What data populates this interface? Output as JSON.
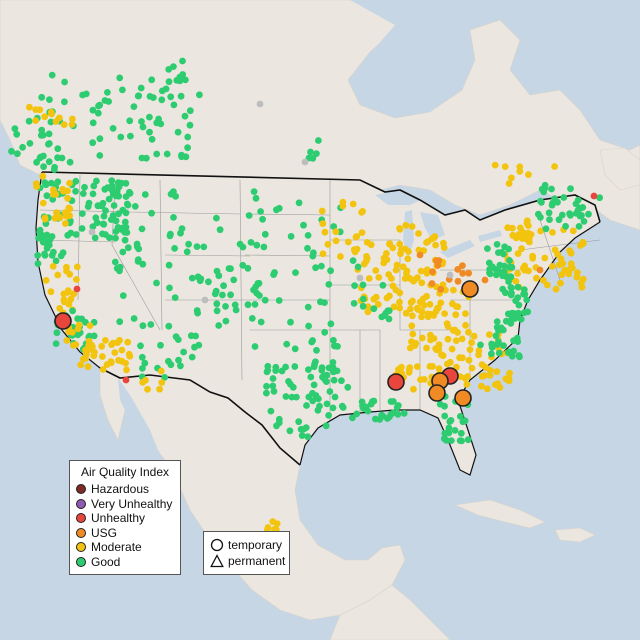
{
  "legend": {
    "title": "Air Quality Index",
    "categories": [
      {
        "label": "Hazardous",
        "color": "#7e2a25"
      },
      {
        "label": "Very Unhealthy",
        "color": "#8f5ab1"
      },
      {
        "label": "Unhealthy",
        "color": "#e8453c"
      },
      {
        "label": "USG",
        "color": "#f08a24"
      },
      {
        "label": "Moderate",
        "color": "#f2c40f"
      },
      {
        "label": "Good",
        "color": "#2ecc71"
      }
    ]
  },
  "shape_legend": {
    "items": [
      {
        "label": "temporary",
        "icon": "circle-icon"
      },
      {
        "label": "permanent",
        "icon": "triangle-icon"
      }
    ]
  },
  "colors": {
    "water": "#c6d6e4",
    "land": "#ebe7e0",
    "border": "#111111",
    "state_lines": "#9a9a9a",
    "no_data": "#bdbdbd"
  }
}
